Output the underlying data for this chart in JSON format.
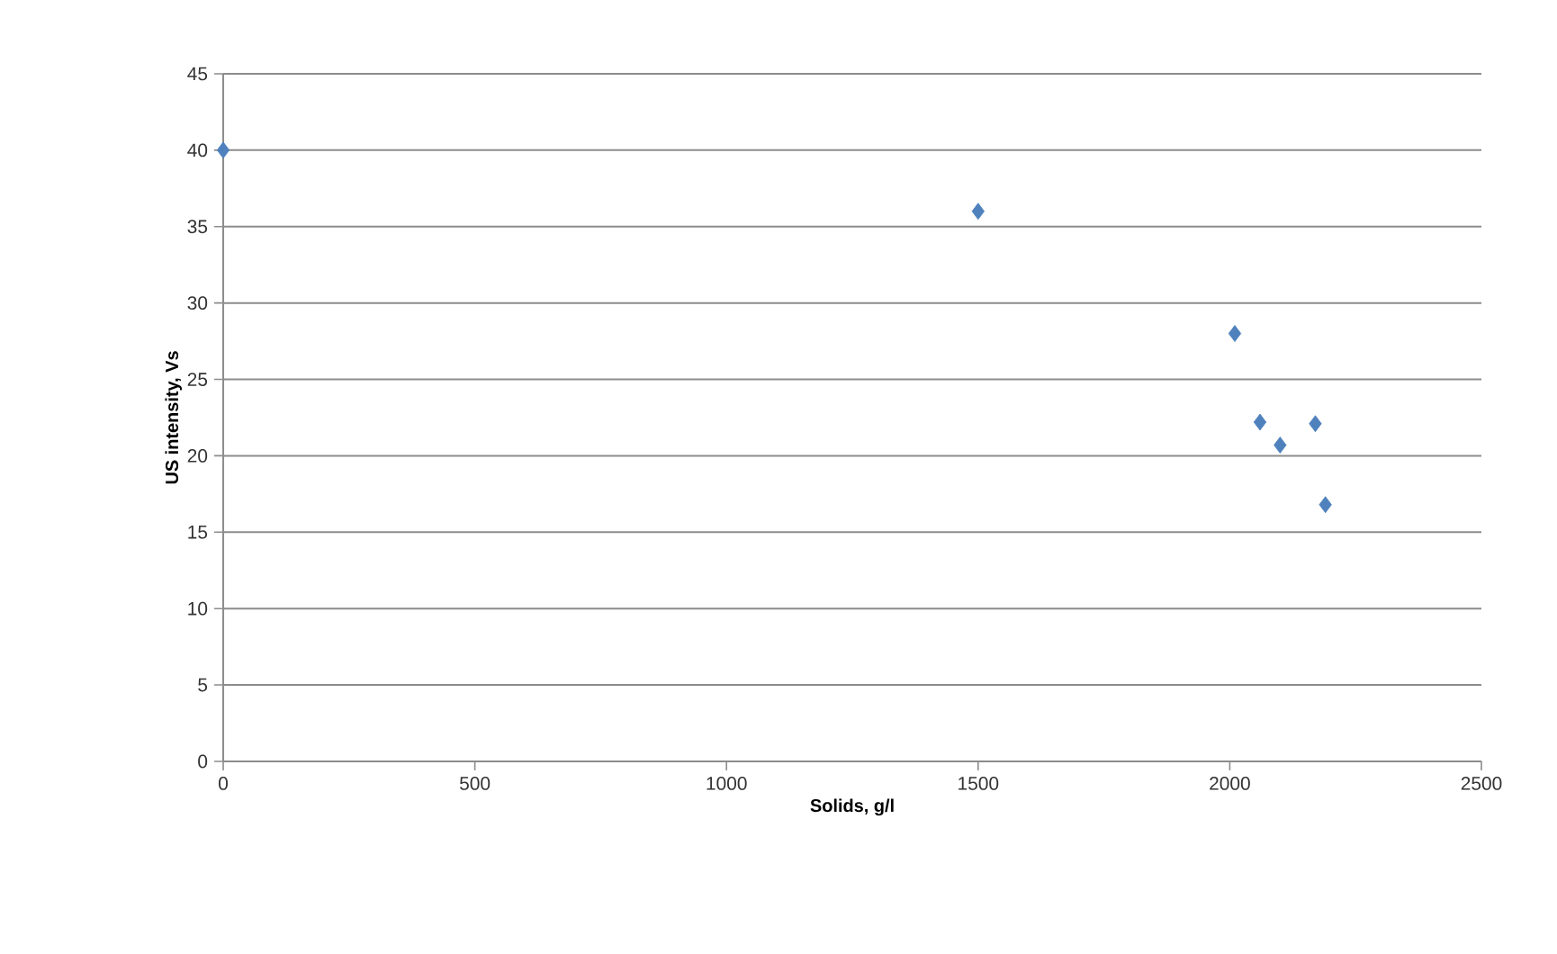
{
  "chart_data": {
    "type": "scatter",
    "xlabel": "Solids, g/l",
    "ylabel": "US intensity, Vs",
    "x": [
      0,
      1500,
      2010,
      2060,
      2100,
      2170,
      2190
    ],
    "values": [
      40,
      36,
      28,
      22.2,
      20.7,
      22.1,
      16.8
    ],
    "color": "#4f81bd",
    "marker": "diamond",
    "grid": "y",
    "xlim": [
      0,
      2500
    ],
    "xticks": [
      0,
      500,
      1000,
      1500,
      2000,
      2500
    ],
    "ylim": [
      0,
      45
    ],
    "yticks": [
      0,
      5,
      10,
      15,
      20,
      25,
      30,
      35,
      40,
      45
    ]
  }
}
